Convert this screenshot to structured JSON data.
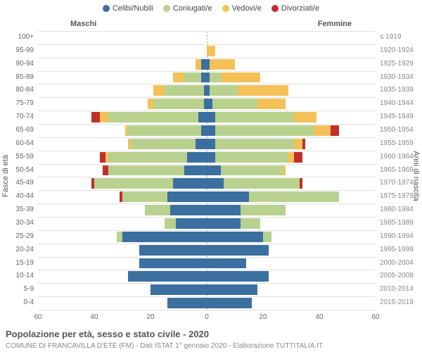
{
  "legend": [
    {
      "label": "Celibi/Nubili",
      "color": "#3b6fa0"
    },
    {
      "label": "Coniugati/e",
      "color": "#b8d18e"
    },
    {
      "label": "Vedovi/e",
      "color": "#f4c159"
    },
    {
      "label": "Divorziati/e",
      "color": "#c22f2a"
    }
  ],
  "header_left": "Maschi",
  "header_right": "Femmine",
  "axis_left_label": "Fasce di età",
  "axis_right_label": "Anni di nascita",
  "title": "Popolazione per età, sesso e stato civile - 2020",
  "subtitle": "COMUNE DI FRANCAVILLA D'ETE (FM) - Dati ISTAT 1° gennaio 2020 - Elaborazione TUTTITALIA.IT",
  "xlim": 60,
  "xtick_step": 20,
  "background_color": "#ffffff",
  "grid_color": "#e0e0e0",
  "rows": [
    {
      "age": "100+",
      "year": "≤ 1919",
      "m": [
        0,
        0,
        0,
        0
      ],
      "f": [
        0,
        0,
        0,
        0
      ]
    },
    {
      "age": "95-99",
      "year": "1920-1924",
      "m": [
        0,
        0,
        0,
        0
      ],
      "f": [
        0,
        0,
        3,
        0
      ]
    },
    {
      "age": "90-94",
      "year": "1925-1929",
      "m": [
        2,
        0,
        2,
        0
      ],
      "f": [
        1,
        0,
        9,
        0
      ]
    },
    {
      "age": "85-89",
      "year": "1930-1934",
      "m": [
        2,
        6,
        4,
        0
      ],
      "f": [
        1,
        4,
        14,
        0
      ]
    },
    {
      "age": "80-84",
      "year": "1935-1939",
      "m": [
        1,
        14,
        4,
        0
      ],
      "f": [
        1,
        10,
        18,
        0
      ]
    },
    {
      "age": "75-79",
      "year": "1940-1944",
      "m": [
        1,
        18,
        2,
        0
      ],
      "f": [
        2,
        16,
        10,
        0
      ]
    },
    {
      "age": "70-74",
      "year": "1945-1949",
      "m": [
        3,
        32,
        3,
        3
      ],
      "f": [
        3,
        28,
        8,
        0
      ]
    },
    {
      "age": "65-69",
      "year": "1950-1954",
      "m": [
        2,
        26,
        1,
        0
      ],
      "f": [
        3,
        35,
        6,
        3
      ]
    },
    {
      "age": "60-64",
      "year": "1955-1959",
      "m": [
        4,
        23,
        1,
        0
      ],
      "f": [
        3,
        28,
        3,
        1
      ]
    },
    {
      "age": "55-59",
      "year": "1960-1964",
      "m": [
        7,
        28,
        1,
        2
      ],
      "f": [
        3,
        26,
        2,
        3
      ]
    },
    {
      "age": "50-54",
      "year": "1965-1969",
      "m": [
        8,
        27,
        0,
        2
      ],
      "f": [
        5,
        22,
        1,
        0
      ]
    },
    {
      "age": "45-49",
      "year": "1970-1974",
      "m": [
        12,
        28,
        0,
        1
      ],
      "f": [
        6,
        27,
        0,
        1
      ]
    },
    {
      "age": "40-44",
      "year": "1975-1979",
      "m": [
        14,
        16,
        0,
        1
      ],
      "f": [
        15,
        32,
        0,
        0
      ]
    },
    {
      "age": "35-39",
      "year": "1980-1984",
      "m": [
        13,
        9,
        0,
        0
      ],
      "f": [
        12,
        16,
        0,
        0
      ]
    },
    {
      "age": "30-34",
      "year": "1985-1989",
      "m": [
        11,
        4,
        0,
        0
      ],
      "f": [
        12,
        7,
        0,
        0
      ]
    },
    {
      "age": "25-29",
      "year": "1990-1994",
      "m": [
        30,
        2,
        0,
        0
      ],
      "f": [
        20,
        3,
        0,
        0
      ]
    },
    {
      "age": "20-24",
      "year": "1995-1999",
      "m": [
        24,
        0,
        0,
        0
      ],
      "f": [
        22,
        0,
        0,
        0
      ]
    },
    {
      "age": "15-19",
      "year": "2000-2004",
      "m": [
        24,
        0,
        0,
        0
      ],
      "f": [
        14,
        0,
        0,
        0
      ]
    },
    {
      "age": "10-14",
      "year": "2005-2009",
      "m": [
        28,
        0,
        0,
        0
      ],
      "f": [
        22,
        0,
        0,
        0
      ]
    },
    {
      "age": "5-9",
      "year": "2010-2014",
      "m": [
        20,
        0,
        0,
        0
      ],
      "f": [
        18,
        0,
        0,
        0
      ]
    },
    {
      "age": "0-4",
      "year": "2015-2019",
      "m": [
        14,
        0,
        0,
        0
      ],
      "f": [
        16,
        0,
        0,
        0
      ]
    }
  ]
}
